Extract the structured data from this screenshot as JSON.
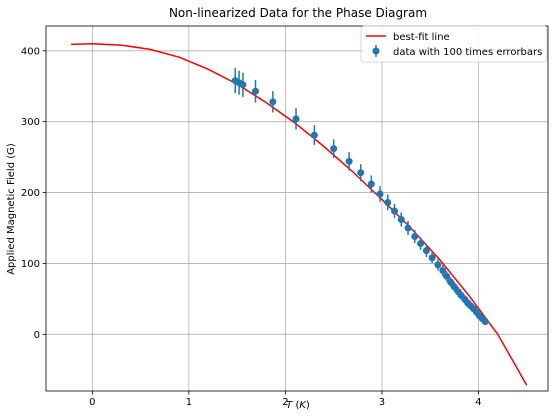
{
  "chart_data": {
    "type": "scatter",
    "title": "Non-linearized Data for the Phase Diagram",
    "xlabel": "T (K)",
    "ylabel": "Applied Magnetic Field (G)",
    "xlim": [
      -0.48,
      4.72
    ],
    "ylim": [
      -80,
      435
    ],
    "xticks": [
      0,
      1,
      2,
      3,
      4
    ],
    "yticks": [
      0,
      100,
      200,
      300,
      400
    ],
    "grid": true,
    "legend_position": "top-right",
    "colors": {
      "fit_line": "#ff0000",
      "data_points": "#1f77b4",
      "grid": "#b0b0b0"
    },
    "series": [
      {
        "name": "best-fit line",
        "kind": "line",
        "x": [
          -0.22,
          0.0,
          0.3,
          0.6,
          0.9,
          1.2,
          1.5,
          1.8,
          2.1,
          2.4,
          2.7,
          3.0,
          3.3,
          3.6,
          3.9,
          4.2,
          4.5
        ],
        "y": [
          409,
          410,
          408,
          402,
          391,
          374,
          353,
          327,
          298,
          265,
          229,
          190,
          150,
          105,
          55,
          0,
          -72
        ]
      },
      {
        "name": "data with 100 times errorbars",
        "kind": "errorbar",
        "x": [
          1.48,
          1.52,
          1.56,
          1.69,
          1.87,
          2.11,
          2.3,
          2.5,
          2.66,
          2.78,
          2.89,
          2.98,
          3.06,
          3.13,
          3.2,
          3.27,
          3.34,
          3.4,
          3.46,
          3.52,
          3.58,
          3.63,
          3.67,
          3.71,
          3.75,
          3.79,
          3.82,
          3.86,
          3.89,
          3.92,
          3.95,
          3.98,
          4.01,
          4.04,
          4.07
        ],
        "y": [
          358,
          355,
          352,
          343,
          328,
          304,
          281,
          262,
          244,
          228,
          212,
          198,
          186,
          174,
          162,
          150,
          138,
          128,
          118,
          108,
          98,
          90,
          82,
          74,
          67,
          60,
          55,
          49,
          44,
          40,
          36,
          31,
          26,
          22,
          18
        ],
        "yerr": [
          18,
          17,
          17,
          16,
          15,
          15,
          14,
          13,
          13,
          12,
          12,
          11,
          11,
          10,
          10,
          10,
          9,
          9,
          9,
          8,
          8,
          8,
          7,
          7,
          7,
          7,
          6,
          6,
          6,
          6,
          6,
          5,
          5,
          5,
          5
        ]
      }
    ]
  }
}
